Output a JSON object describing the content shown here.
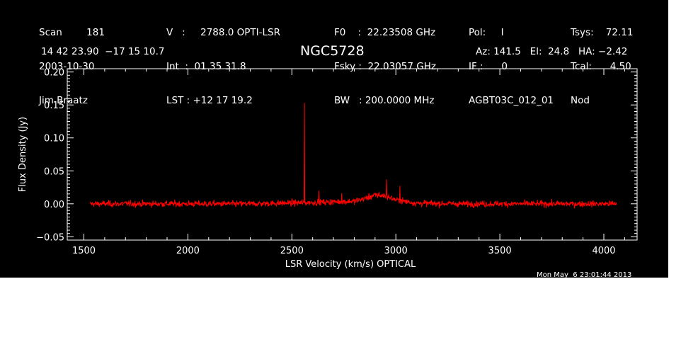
{
  "header": {
    "col1": [
      "Scan        181",
      "2003-10-30",
      "Jim Braatz"
    ],
    "col2": [
      "V   :     2788.0 OPTI-LSR",
      "Int  :  01 35 31.8",
      "LST : +12 17 19.2"
    ],
    "col3": [
      "F0    :  22.23508 GHz",
      "Fsky :  22.03057 GHz",
      "BW   : 200.0000 MHz"
    ],
    "col4": [
      "Pol:     I",
      "IF :      0",
      "AGBT03C_012_01"
    ],
    "col5": [
      "Tsys:    72.11",
      "Tcal:      4.50",
      "Nod"
    ],
    "coords": "14 42 23.90  −17 15 10.7",
    "source": "NGC5728",
    "azel": "Az: 141.5   El:  24.8   HA: −2.42",
    "timestamp": "Mon May  6 23:01:44 2013"
  },
  "chart_data": {
    "type": "line",
    "xlabel": "LSR Velocity (km/s) OPTICAL",
    "ylabel": "Flux Density (Jy)",
    "xlim": [
      1420,
      4160
    ],
    "ylim": [
      -0.055,
      0.205
    ],
    "xticks": [
      1500,
      2000,
      2500,
      3000,
      3500,
      4000
    ],
    "xtick_labels": [
      "1500",
      "2000",
      "2500",
      "3000",
      "3500",
      "4000"
    ],
    "yticks": [
      -0.05,
      0.0,
      0.05,
      0.1,
      0.15,
      0.2
    ],
    "ytick_labels": [
      "−0.05",
      "0.00",
      "0.05",
      "0.10",
      "0.15",
      "0.20"
    ],
    "series": [
      {
        "color": "#ff0000",
        "x_range": [
          1530,
          4060
        ],
        "noise_rms": 0.004,
        "baseline": [
          [
            1530,
            0.0
          ],
          [
            2300,
            0.0
          ],
          [
            2600,
            0.002
          ],
          [
            2800,
            0.004
          ],
          [
            2850,
            0.008
          ],
          [
            2900,
            0.013
          ],
          [
            2950,
            0.012
          ],
          [
            3000,
            0.006
          ],
          [
            3100,
            0.001
          ],
          [
            3300,
            0.0
          ],
          [
            4060,
            0.0
          ]
        ],
        "peaks": [
          {
            "x": 2560,
            "y": 0.153
          },
          {
            "x": 2630,
            "y": 0.02
          },
          {
            "x": 2740,
            "y": 0.016
          },
          {
            "x": 2920,
            "y": 0.018
          },
          {
            "x": 2955,
            "y": 0.037
          },
          {
            "x": 3020,
            "y": 0.027
          }
        ]
      }
    ]
  }
}
